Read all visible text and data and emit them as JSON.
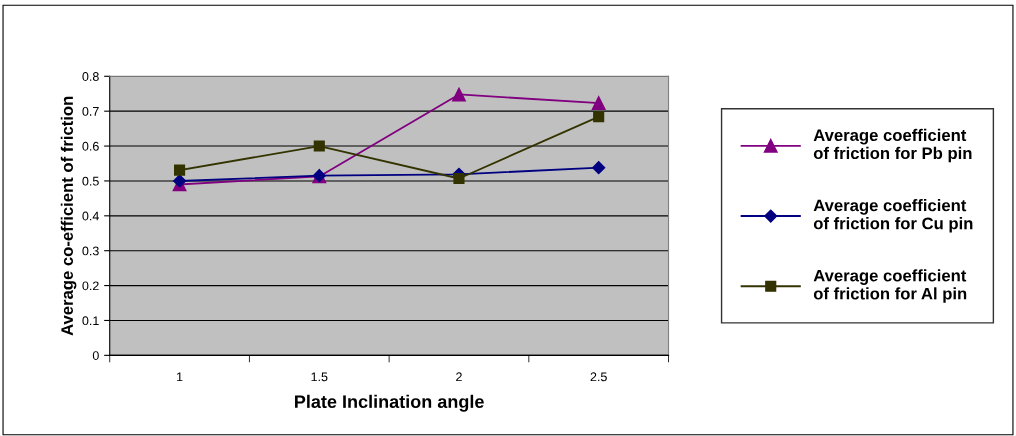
{
  "chart_data": {
    "type": "line",
    "xlabel": "Plate Inclination angle",
    "ylabel": "Average co-efficient of friction",
    "categories": [
      "1",
      "1.5",
      "2",
      "2.5"
    ],
    "series": [
      {
        "name": "Average coefficient of friction for Pb pin",
        "color": "#800080",
        "marker": "triangle",
        "values": [
          0.49,
          0.513,
          0.748,
          0.723
        ]
      },
      {
        "name": "Average coefficient of friction for Cu pin",
        "color": "#000080",
        "marker": "diamond",
        "values": [
          0.5,
          0.515,
          0.519,
          0.538
        ]
      },
      {
        "name": "Average coefficient of friction for Al pin",
        "color": "#333300",
        "marker": "square",
        "values": [
          0.531,
          0.6,
          0.507,
          0.684
        ]
      }
    ],
    "ylim": [
      0,
      0.8
    ],
    "yticks": [
      0,
      0.1,
      0.2,
      0.3,
      0.4,
      0.5,
      0.6,
      0.7,
      0.8
    ],
    "grid": "y",
    "legend": "right"
  }
}
